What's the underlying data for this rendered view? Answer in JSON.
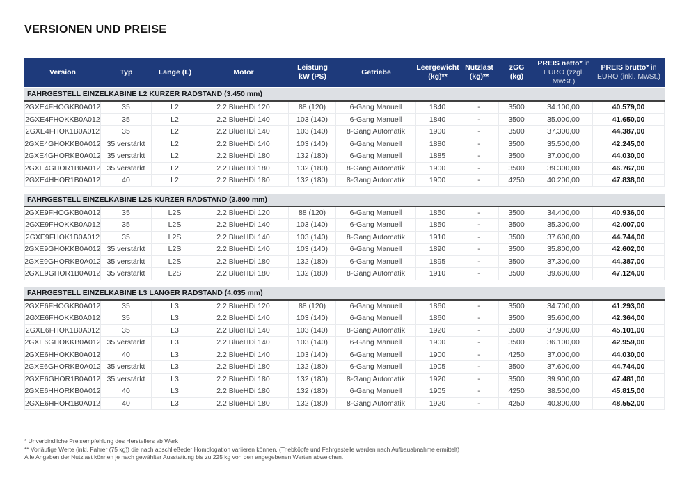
{
  "title": "VERSIONEN UND PREISE",
  "colors": {
    "header_bg": "#1e3a7b",
    "header_text": "#ffffff",
    "section_band_bg": "#dde0e4",
    "section_band_border": "#404040",
    "row_border": "#e9ebee"
  },
  "table": {
    "columns": [
      {
        "id": "version",
        "line1": "Version"
      },
      {
        "id": "typ",
        "line1": "Typ"
      },
      {
        "id": "laenge",
        "line1": "Länge (L)"
      },
      {
        "id": "motor",
        "line1": "Motor"
      },
      {
        "id": "leistung",
        "line1": "Leistung",
        "line2": "kW (PS)"
      },
      {
        "id": "getriebe",
        "line1": "Getriebe"
      },
      {
        "id": "leergewicht",
        "line1": "Leergewicht",
        "line2": "(kg)**"
      },
      {
        "id": "nutzlast",
        "line1": "Nutzlast",
        "line2": "(kg)**"
      },
      {
        "id": "zgg",
        "line1": "zGG",
        "line2": "(kg)"
      },
      {
        "id": "preis_netto",
        "bold": "PREIS netto*",
        "regular": " in",
        "line2": "EURO (zzgl. MwSt.)",
        "preis": true
      },
      {
        "id": "preis_brutto",
        "bold": "PREIS brutto*",
        "regular": " in",
        "line2": "EURO (inkl. MwSt.)",
        "preis": true
      }
    ],
    "sections": [
      {
        "heading": "FAHRGESTELL EINZELKABINE L2 KURZER RADSTAND (3.450 mm)",
        "rows": [
          [
            "2GXE4FHOGKB0A012",
            "35",
            "L2",
            "2.2 BlueHDi 120",
            "88 (120)",
            "6-Gang Manuell",
            "1840",
            "-",
            "3500",
            "34.100,00",
            "40.579,00"
          ],
          [
            "2GXE4FHOKKB0A012",
            "35",
            "L2",
            "2.2 BlueHDi 140",
            "103 (140)",
            "6-Gang Manuell",
            "1840",
            "-",
            "3500",
            "35.000,00",
            "41.650,00"
          ],
          [
            "2GXE4FHOK1B0A012",
            "35",
            "L2",
            "2.2 BlueHDi 140",
            "103 (140)",
            "8-Gang Automatik",
            "1900",
            "-",
            "3500",
            "37.300,00",
            "44.387,00"
          ],
          [
            "2GXE4GHOKKB0A012",
            "35 verstärkt",
            "L2",
            "2.2 BlueHDi 140",
            "103 (140)",
            "6-Gang Manuell",
            "1880",
            "-",
            "3500",
            "35.500,00",
            "42.245,00"
          ],
          [
            "2GXE4GHORKB0A012",
            "35 verstärkt",
            "L2",
            "2.2 BlueHDi 180",
            "132 (180)",
            "6-Gang Manuell",
            "1885",
            "-",
            "3500",
            "37.000,00",
            "44.030,00"
          ],
          [
            "2GXE4GHOR1B0A012",
            "35 verstärkt",
            "L2",
            "2.2 BlueHDi 180",
            "132 (180)",
            "8-Gang Automatik",
            "1900",
            "-",
            "3500",
            "39.300,00",
            "46.767,00"
          ],
          [
            "2GXE4HHOR1B0A012",
            "40",
            "L2",
            "2.2 BlueHDi 180",
            "132 (180)",
            "8-Gang Automatik",
            "1900",
            "-",
            "4250",
            "40.200,00",
            "47.838,00"
          ]
        ]
      },
      {
        "heading": "FAHRGESTELL EINZELKABINE L2S KURZER RADSTAND (3.800 mm)",
        "rows": [
          [
            "2GXE9FHOGKB0A012",
            "35",
            "L2S",
            "2.2 BlueHDi 120",
            "88 (120)",
            "6-Gang Manuell",
            "1850",
            "-",
            "3500",
            "34.400,00",
            "40.936,00"
          ],
          [
            "2GXE9FHOKKB0A012",
            "35",
            "L2S",
            "2.2 BlueHDi 140",
            "103 (140)",
            "6-Gang Manuell",
            "1850",
            "-",
            "3500",
            "35.300,00",
            "42.007,00"
          ],
          [
            "2GXE9FHOK1B0A012",
            "35",
            "L2S",
            "2.2 BlueHDi 140",
            "103 (140)",
            "8-Gang Automatik",
            "1910",
            "-",
            "3500",
            "37.600,00",
            "44.744,00"
          ],
          [
            "2GXE9GHOKKB0A012",
            "35 verstärkt",
            "L2S",
            "2.2 BlueHDi 140",
            "103 (140)",
            "6-Gang Manuell",
            "1890",
            "-",
            "3500",
            "35.800,00",
            "42.602,00"
          ],
          [
            "2GXE9GHORKB0A012",
            "35 verstärkt",
            "L2S",
            "2.2 BlueHDi 180",
            "132 (180)",
            "6-Gang Manuell",
            "1895",
            "-",
            "3500",
            "37.300,00",
            "44.387,00"
          ],
          [
            "2GXE9GHOR1B0A012",
            "35 verstärkt",
            "L2S",
            "2.2 BlueHDi 180",
            "132 (180)",
            "8-Gang Automatik",
            "1910",
            "-",
            "3500",
            "39.600,00",
            "47.124,00"
          ]
        ]
      },
      {
        "heading": "FAHRGESTELL EINZELKABINE L3 LANGER RADSTAND (4.035 mm)",
        "rows": [
          [
            "2GXE6FHOGKB0A012",
            "35",
            "L3",
            "2.2 BlueHDi 120",
            "88 (120)",
            "6-Gang Manuell",
            "1860",
            "-",
            "3500",
            "34.700,00",
            "41.293,00"
          ],
          [
            "2GXE6FHOKKB0A012",
            "35",
            "L3",
            "2.2 BlueHDi 140",
            "103 (140)",
            "6-Gang Manuell",
            "1860",
            "-",
            "3500",
            "35.600,00",
            "42.364,00"
          ],
          [
            "2GXE6FHOK1B0A012",
            "35",
            "L3",
            "2.2 BlueHDi 140",
            "103 (140)",
            "8-Gang Automatik",
            "1920",
            "-",
            "3500",
            "37.900,00",
            "45.101,00"
          ],
          [
            "2GXE6GHOKKB0A012",
            "35 verstärkt",
            "L3",
            "2.2 BlueHDi 140",
            "103 (140)",
            "6-Gang Manuell",
            "1900",
            "-",
            "3500",
            "36.100,00",
            "42.959,00"
          ],
          [
            "2GXE6HHOKKB0A012",
            "40",
            "L3",
            "2.2 BlueHDi 140",
            "103 (140)",
            "6-Gang Manuell",
            "1900",
            "-",
            "4250",
            "37.000,00",
            "44.030,00"
          ],
          [
            "2GXE6GHORKB0A012",
            "35 verstärkt",
            "L3",
            "2.2 BlueHDi 180",
            "132 (180)",
            "6-Gang Manuell",
            "1905",
            "-",
            "3500",
            "37.600,00",
            "44.744,00"
          ],
          [
            "2GXE6GHOR1B0A012",
            "35 verstärkt",
            "L3",
            "2.2 BlueHDi 180",
            "132 (180)",
            "8-Gang Automatik",
            "1920",
            "-",
            "3500",
            "39.900,00",
            "47.481,00"
          ],
          [
            "2GXE6HHORKB0A012",
            "40",
            "L3",
            "2.2 BlueHDi 180",
            "132 (180)",
            "6-Gang Manuell",
            "1905",
            "-",
            "4250",
            "38.500,00",
            "45.815,00"
          ],
          [
            "2GXE6HHOR1B0A012",
            "40",
            "L3",
            "2.2 BlueHDi 180",
            "132 (180)",
            "8-Gang Automatik",
            "1920",
            "-",
            "4250",
            "40.800,00",
            "48.552,00"
          ]
        ]
      }
    ]
  },
  "footnotes": [
    "* Unverbindliche Preisempfehlung des Herstellers ab Werk",
    "** Vorläufige Werte (inkl. Fahrer (75 kg)) die nach abschließeder Homologation variieren können.  (Triebköpfe und Fahrgestelle werden nach Aufbauabnahme ermittelt)",
    "Alle Angaben der Nutzlast können je nach gewählter Ausstattung bis zu 225 kg von den angegebenen Werten abweichen."
  ]
}
